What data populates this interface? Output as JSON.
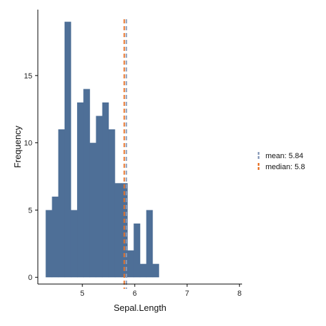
{
  "chart_data": {
    "type": "bar",
    "subtype": "histogram",
    "title": "",
    "xlabel": "Sepal.Length",
    "ylabel": "Frequency",
    "bin_start": 4.3,
    "bin_width": 0.12,
    "counts": [
      5,
      6,
      11,
      19,
      5,
      13,
      14,
      10,
      12,
      13,
      11,
      7,
      7,
      2,
      4,
      1,
      5,
      1
    ],
    "xlim": [
      4.15,
      8.05
    ],
    "ylim": [
      -0.5,
      19.9
    ],
    "x_ticks": [
      5,
      6,
      7,
      8
    ],
    "x_tick_labels": [
      "5",
      "6",
      "7",
      "8"
    ],
    "y_ticks": [
      0,
      5,
      10,
      15
    ],
    "y_tick_labels": [
      "0",
      "5",
      "10",
      "15"
    ],
    "grid": false,
    "legend_position": "right",
    "bar_color": "#4e6f97",
    "reference_lines": [
      {
        "name": "mean",
        "value": 5.84,
        "label": "mean: 5.84",
        "color": "#8a9cba",
        "style": "dashed"
      },
      {
        "name": "median",
        "value": 5.8,
        "label": "median: 5.8",
        "color": "#e8742a",
        "style": "dashed"
      }
    ]
  }
}
